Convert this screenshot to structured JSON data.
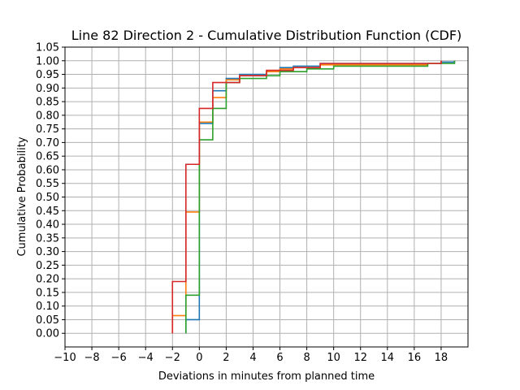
{
  "chart_data": {
    "type": "line",
    "step": true,
    "title": "Line 82 Direction 2 - Cumulative Distribution Function (CDF)",
    "xlabel": "Deviations in minutes from planned time",
    "ylabel": "Cumulative Probability",
    "xlim": [
      -10,
      20
    ],
    "ylim": [
      -0.05,
      1.05
    ],
    "xticks": [
      -10,
      -8,
      -6,
      -4,
      -2,
      0,
      2,
      4,
      6,
      8,
      10,
      12,
      14,
      16,
      18
    ],
    "yticks": [
      0.0,
      0.05,
      0.1,
      0.15,
      0.2,
      0.25,
      0.3,
      0.35,
      0.4,
      0.45,
      0.5,
      0.55,
      0.6,
      0.65,
      0.7,
      0.75,
      0.8,
      0.85,
      0.9,
      0.95,
      1.0,
      1.05
    ],
    "grid": true,
    "series": [
      {
        "color": "#1f77b4",
        "x": [
          -1,
          0,
          1,
          2,
          3,
          5,
          6,
          7,
          9,
          18,
          19
        ],
        "y": [
          0.05,
          0.77,
          0.89,
          0.935,
          0.95,
          0.96,
          0.975,
          0.98,
          0.99,
          0.995,
          1.0
        ]
      },
      {
        "color": "#ff7f0e",
        "x": [
          -2,
          -1,
          0,
          1,
          2,
          3,
          5,
          6,
          7,
          9,
          17,
          18
        ],
        "y": [
          0.065,
          0.445,
          0.775,
          0.865,
          0.93,
          0.945,
          0.96,
          0.97,
          0.975,
          0.985,
          0.99,
          1.0
        ]
      },
      {
        "color": "#2ca02c",
        "x": [
          -1,
          0,
          1,
          2,
          3,
          5,
          6,
          8,
          10,
          17,
          19
        ],
        "y": [
          0.14,
          0.71,
          0.825,
          0.92,
          0.935,
          0.945,
          0.96,
          0.97,
          0.98,
          0.99,
          1.0
        ]
      },
      {
        "color": "#d62728",
        "x": [
          -2,
          -1,
          0,
          1,
          3,
          5,
          7,
          9,
          17,
          18
        ],
        "y": [
          0.19,
          0.62,
          0.825,
          0.92,
          0.945,
          0.965,
          0.975,
          0.99,
          0.99,
          1.0
        ]
      }
    ]
  }
}
